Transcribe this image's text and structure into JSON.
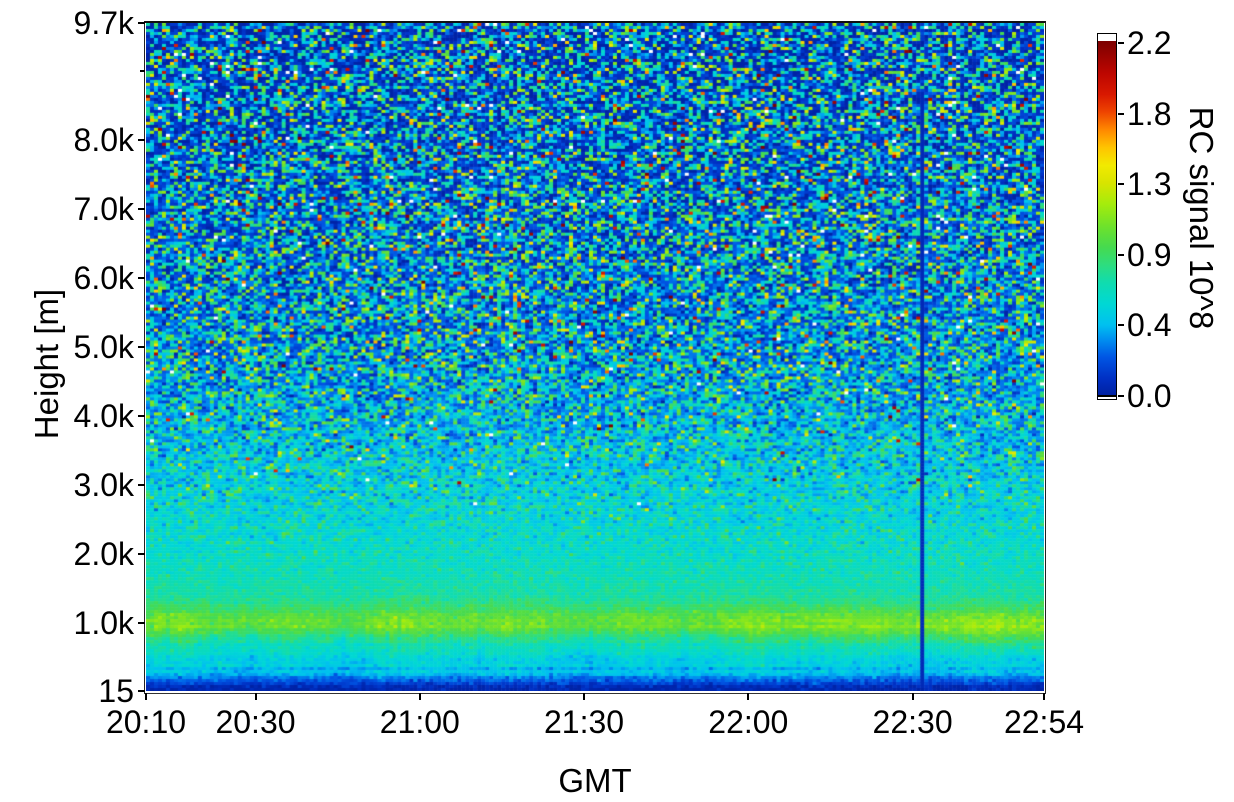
{
  "figure": {
    "background_color": "#ffffff",
    "frame_color": "#000000",
    "text_color": "#000000"
  },
  "chart_data": {
    "type": "heatmap",
    "title": "",
    "xlabel": "GMT",
    "ylabel": "Height [m]",
    "colorbar_label": "RC signal 10^8",
    "x_start_time": "20:10",
    "x_end_time": "22:54",
    "x_range_minutes": [
      0,
      164
    ],
    "x_ticks": [
      {
        "label": "20:10",
        "minute": 0
      },
      {
        "label": "20:30",
        "minute": 20
      },
      {
        "label": "21:00",
        "minute": 50
      },
      {
        "label": "21:30",
        "minute": 80
      },
      {
        "label": "22:00",
        "minute": 110
      },
      {
        "label": "22:30",
        "minute": 140
      },
      {
        "label": "22:54",
        "minute": 164
      }
    ],
    "y_range_m": [
      15,
      9700
    ],
    "y_ticks": [
      {
        "label": "9.7k",
        "value": 9700
      },
      {
        "label": "8.0k",
        "value": 8000
      },
      {
        "label": "7.0k",
        "value": 7000
      },
      {
        "label": "6.0k",
        "value": 6000
      },
      {
        "label": "5.0k",
        "value": 5000
      },
      {
        "label": "4.0k",
        "value": 4000
      },
      {
        "label": "3.0k",
        "value": 3000
      },
      {
        "label": "2.0k",
        "value": 2000
      },
      {
        "label": "1.0k",
        "value": 1000
      },
      {
        "label": "15",
        "value": 15
      }
    ],
    "y_minor_ticks_m": [
      9000
    ],
    "value_range": [
      0.0,
      2.2
    ],
    "colorbar_tick_labels": [
      "2.2",
      "1.8",
      "1.3",
      "0.9",
      "0.4",
      "0.0"
    ],
    "colormap": {
      "name": "jet-like",
      "over_color": "#ffffff",
      "stops": [
        [
          0.0,
          "#0020a0"
        ],
        [
          0.05,
          "#0030c4"
        ],
        [
          0.11,
          "#0056e4"
        ],
        [
          0.16,
          "#0090f0"
        ],
        [
          0.2,
          "#00c0f0"
        ],
        [
          0.26,
          "#00d8d4"
        ],
        [
          0.32,
          "#10dcae"
        ],
        [
          0.37,
          "#2edd7e"
        ],
        [
          0.42,
          "#46da4e"
        ],
        [
          0.48,
          "#70e22a"
        ],
        [
          0.54,
          "#a4ec0c"
        ],
        [
          0.6,
          "#d8e400"
        ],
        [
          0.65,
          "#f2ea00"
        ],
        [
          0.7,
          "#ffc400"
        ],
        [
          0.75,
          "#ff8800"
        ],
        [
          0.8,
          "#ee4400"
        ],
        [
          0.85,
          "#d81800"
        ],
        [
          0.91,
          "#bc0600"
        ],
        [
          1.0,
          "#7c0000"
        ]
      ]
    },
    "mean_profile_height_value": [
      [
        15,
        0.02
      ],
      [
        60,
        0.04
      ],
      [
        120,
        0.15
      ],
      [
        200,
        0.33
      ],
      [
        300,
        0.47
      ],
      [
        450,
        0.56
      ],
      [
        650,
        0.64
      ],
      [
        800,
        0.82
      ],
      [
        950,
        1.0
      ],
      [
        1050,
        1.03
      ],
      [
        1200,
        0.88
      ],
      [
        1400,
        0.74
      ],
      [
        1700,
        0.66
      ],
      [
        2100,
        0.6
      ],
      [
        2600,
        0.54
      ],
      [
        3200,
        0.48
      ],
      [
        4000,
        0.41
      ],
      [
        5000,
        0.34
      ],
      [
        6000,
        0.29
      ],
      [
        7500,
        0.23
      ],
      [
        8700,
        0.19
      ],
      [
        9700,
        0.17
      ]
    ],
    "noise_model": {
      "description": "photon-noise speckle growing with height; smooth below ~1.5 km",
      "speckle_onset_m": 1500,
      "outlier_onset_m": 2500,
      "outlier_fraction_max": 0.07,
      "over_range_fraction_max": 0.004
    },
    "features": {
      "aerosol_band": "bright yellow-green layer near 1.0 km, brightening and descending to ~0.8 km after 22:00",
      "surface_layer": "dark blue low-signal band below ~150 m",
      "gap_column_minute": 141.5
    }
  }
}
